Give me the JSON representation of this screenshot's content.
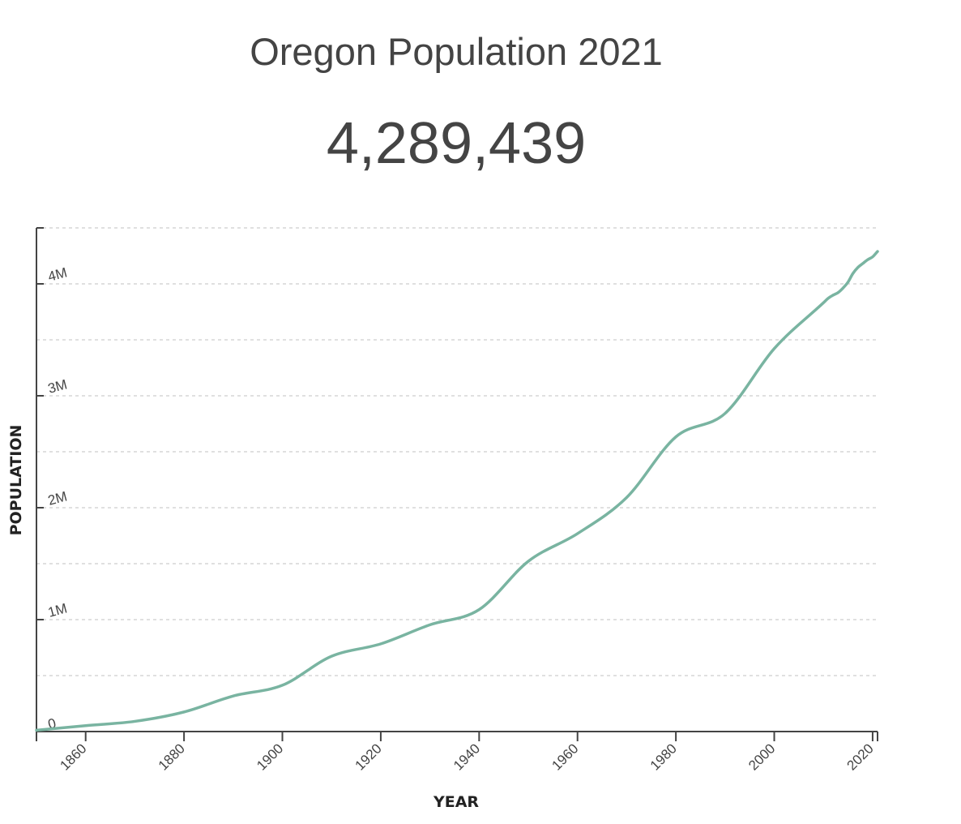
{
  "header": {
    "title": "Oregon Population 2021",
    "headline_value": "4,289,439"
  },
  "chart_data": {
    "type": "line",
    "title": "Oregon Population 2021",
    "xlabel": "YEAR",
    "ylabel": "POPULATION",
    "xlim": [
      1850,
      2021
    ],
    "ylim": [
      0,
      4500000
    ],
    "grid": true,
    "grid_style": "dashed horizontal every 500000",
    "x_ticks": [
      1860,
      1880,
      1900,
      1920,
      1940,
      1960,
      1980,
      2000,
      2020
    ],
    "x_tick_labels": [
      "1860",
      "1880",
      "1900",
      "1920",
      "1940",
      "1960",
      "1980",
      "2000",
      "2020"
    ],
    "y_ticks": [
      0,
      1000000,
      2000000,
      3000000,
      4000000
    ],
    "y_tick_labels": [
      "0",
      "1M",
      "2M",
      "3M",
      "4M"
    ],
    "line_color": "#79b4a1",
    "series": [
      {
        "name": "Population",
        "x": [
          1850,
          1860,
          1870,
          1880,
          1890,
          1900,
          1910,
          1920,
          1930,
          1940,
          1950,
          1960,
          1970,
          1980,
          1990,
          2000,
          2010,
          2011,
          2012,
          2013,
          2014,
          2015,
          2016,
          2017,
          2018,
          2019,
          2020,
          2021
        ],
        "values": [
          12093,
          52465,
          90923,
          174768,
          317704,
          413536,
          672765,
          783389,
          953786,
          1089684,
          1521341,
          1768687,
          2091533,
          2633156,
          2842337,
          3421436,
          3831074,
          3872036,
          3899801,
          3922468,
          3963244,
          4015792,
          4093271,
          4146592,
          4181886,
          4216116,
          4241500,
          4289439
        ]
      }
    ]
  }
}
